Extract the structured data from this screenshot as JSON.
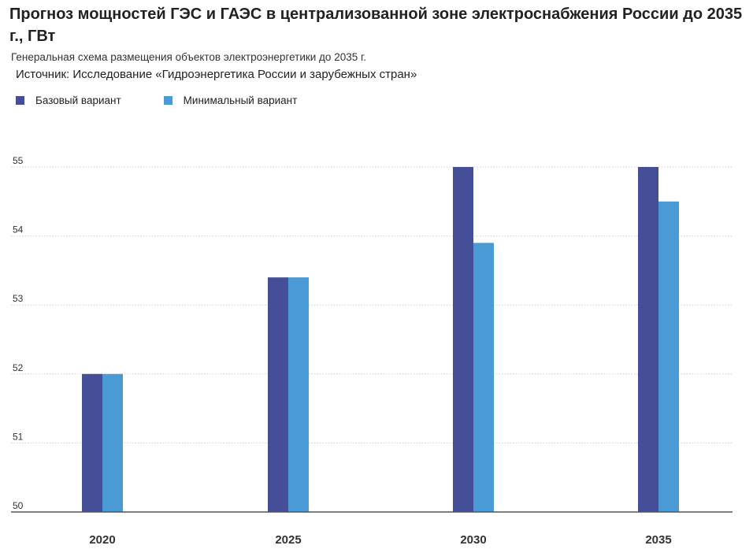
{
  "header": {
    "title": "Прогноз мощностей ГЭС и ГАЭС в централизованной зоне электроснабжения России до 2035 г., ГВт",
    "subtitle": "Генеральная схема размещения объектов электроэнергетики до 2035 г.",
    "source": "Источник: Исследование «Гидроэнергетика России и зарубежных стран»"
  },
  "colors": {
    "base": "#454f98",
    "minimal": "#4a9ad6",
    "grid": "#cfcfcf",
    "axis": "#555555"
  },
  "chart_data": {
    "type": "bar",
    "title": "Прогноз мощностей ГЭС и ГАЭС в централизованной зоне электроснабжения России до 2035 г., ГВт",
    "categories": [
      "2020",
      "2025",
      "2030",
      "2035"
    ],
    "series": [
      {
        "name": "Базовый вариант",
        "values": [
          52.0,
          53.4,
          55.0,
          55.0
        ]
      },
      {
        "name": "Минимальный вариант",
        "values": [
          52.0,
          53.4,
          53.9,
          54.5
        ]
      }
    ],
    "xlabel": "",
    "ylabel": "",
    "ylim": [
      50,
      55
    ],
    "yticks": [
      "50",
      "51",
      "52",
      "53",
      "54",
      "55"
    ],
    "grid": true,
    "legend_position": "top-left"
  }
}
